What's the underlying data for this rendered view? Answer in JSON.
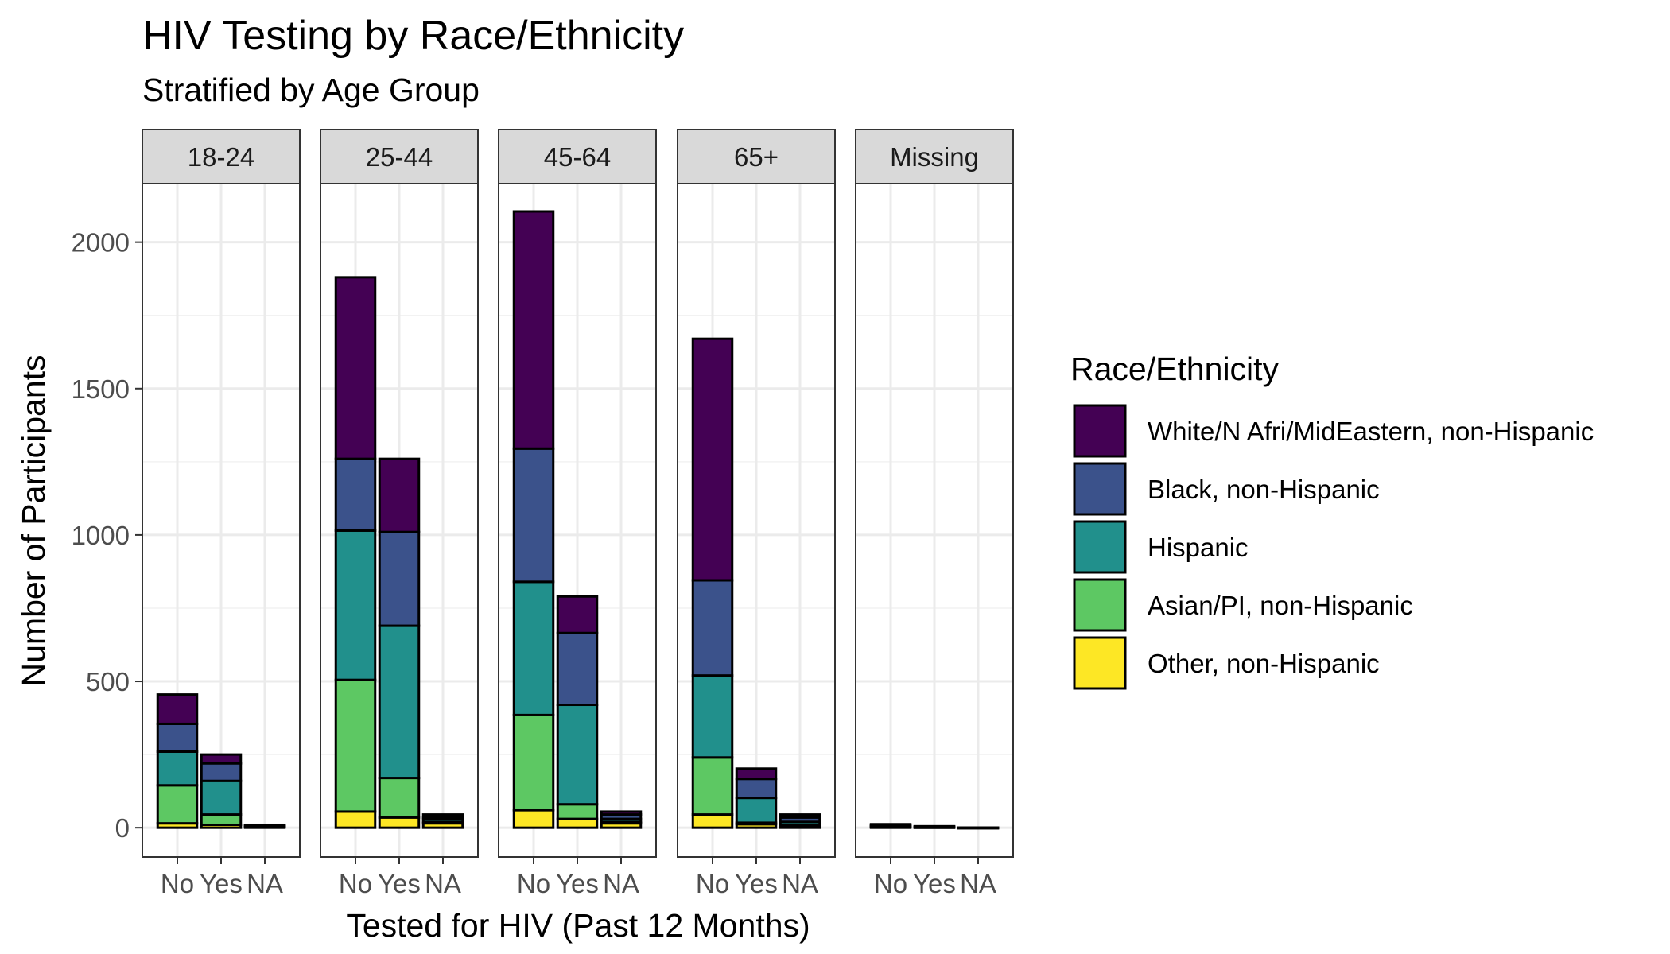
{
  "chart_data": {
    "type": "bar",
    "stacked": true,
    "faceted": true,
    "title": "HIV Testing by Race/Ethnicity",
    "subtitle": "Stratified by Age Group",
    "xlabel": "Tested for HIV (Past 12 Months)",
    "ylabel": "Number of Participants",
    "ylim": [
      -100,
      2200
    ],
    "yticks": [
      0,
      500,
      1000,
      1500,
      2000
    ],
    "grid": true,
    "categories": [
      "No",
      "Yes",
      "NA"
    ],
    "legend": {
      "title": "Race/Ethnicity",
      "position": "right",
      "entries": [
        {
          "label": "White/N Afri/MidEastern, non-Hispanic",
          "color": "#440154"
        },
        {
          "label": "Black, non-Hispanic",
          "color": "#3B528B"
        },
        {
          "label": "Hispanic",
          "color": "#21908C"
        },
        {
          "label": "Asian/PI, non-Hispanic",
          "color": "#5DC863"
        },
        {
          "label": "Other, non-Hispanic",
          "color": "#FDE725"
        }
      ]
    },
    "stack_order": [
      "Other, non-Hispanic",
      "Asian/PI, non-Hispanic",
      "Hispanic",
      "Black, non-Hispanic",
      "White/N Afri/MidEastern, non-Hispanic"
    ],
    "facets": [
      {
        "label": "18-24",
        "bars": [
          {
            "category": "No",
            "values": [
              15,
              130,
              115,
              95,
              100
            ]
          },
          {
            "category": "Yes",
            "values": [
              10,
              35,
              115,
              60,
              30
            ]
          },
          {
            "category": "NA",
            "values": [
              2,
              2,
              2,
              2,
              2
            ]
          }
        ]
      },
      {
        "label": "25-44",
        "bars": [
          {
            "category": "No",
            "values": [
              55,
              450,
              510,
              245,
              620
            ]
          },
          {
            "category": "Yes",
            "values": [
              35,
              135,
              520,
              320,
              250
            ]
          },
          {
            "category": "NA",
            "values": [
              15,
              5,
              10,
              5,
              10
            ]
          }
        ]
      },
      {
        "label": "45-64",
        "bars": [
          {
            "category": "No",
            "values": [
              60,
              325,
              455,
              455,
              810
            ]
          },
          {
            "category": "Yes",
            "values": [
              30,
              50,
              340,
              245,
              125
            ]
          },
          {
            "category": "NA",
            "values": [
              15,
              5,
              10,
              15,
              10
            ]
          }
        ]
      },
      {
        "label": "65+",
        "bars": [
          {
            "category": "No",
            "values": [
              45,
              195,
              280,
              325,
              825
            ]
          },
          {
            "category": "Yes",
            "values": [
              12,
              5,
              85,
              65,
              35
            ]
          },
          {
            "category": "NA",
            "values": [
              5,
              5,
              10,
              15,
              10
            ]
          }
        ]
      },
      {
        "label": "Missing",
        "bars": [
          {
            "category": "No",
            "values": [
              2,
              2,
              2,
              3,
              3
            ]
          },
          {
            "category": "Yes",
            "values": [
              1,
              1,
              1,
              1,
              1
            ]
          },
          {
            "category": "NA",
            "values": [
              0,
              0,
              0,
              0,
              0
            ]
          }
        ]
      }
    ]
  }
}
